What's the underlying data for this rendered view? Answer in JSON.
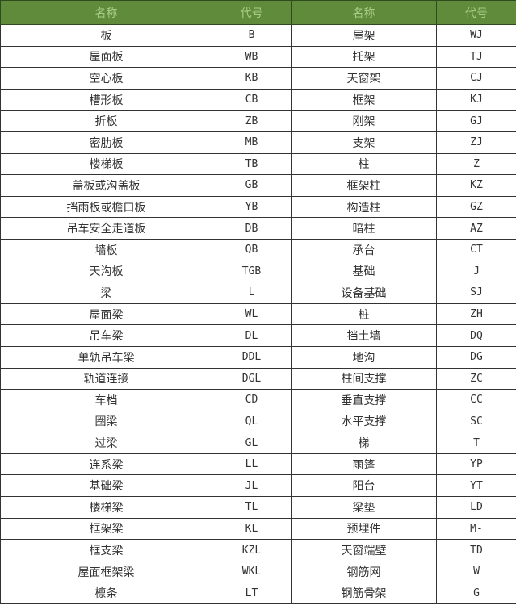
{
  "header": {
    "name1": "名称",
    "code1": "代号",
    "name2": "名称",
    "code2": "代号",
    "header_bg": "#5f8b3a"
  },
  "rows": [
    [
      "板",
      "B",
      "屋架",
      "WJ"
    ],
    [
      "屋面板",
      "WB",
      "托架",
      "TJ"
    ],
    [
      "空心板",
      "KB",
      "天窗架",
      "CJ"
    ],
    [
      "槽形板",
      "CB",
      "框架",
      "KJ"
    ],
    [
      "折板",
      "ZB",
      "刚架",
      "GJ"
    ],
    [
      "密肋板",
      "MB",
      "支架",
      "ZJ"
    ],
    [
      "楼梯板",
      "TB",
      "柱",
      "Z"
    ],
    [
      "盖板或沟盖板",
      "GB",
      "框架柱",
      "KZ"
    ],
    [
      "挡雨板或檐口板",
      "YB",
      "构造柱",
      "GZ"
    ],
    [
      "吊车安全走道板",
      "DB",
      "暗柱",
      "AZ"
    ],
    [
      "墙板",
      "QB",
      "承台",
      "CT"
    ],
    [
      "天沟板",
      "TGB",
      "基础",
      "J"
    ],
    [
      "梁",
      "L",
      "设备基础",
      "SJ"
    ],
    [
      "屋面梁",
      "WL",
      "桩",
      "ZH"
    ],
    [
      "吊车梁",
      "DL",
      "挡土墙",
      "DQ"
    ],
    [
      "单轨吊车梁",
      "DDL",
      "地沟",
      "DG"
    ],
    [
      "轨道连接",
      "DGL",
      "柱间支撑",
      "ZC"
    ],
    [
      "车档",
      "CD",
      "垂直支撑",
      "CC"
    ],
    [
      "圈梁",
      "QL",
      "水平支撑",
      "SC"
    ],
    [
      "过梁",
      "GL",
      "梯",
      "T"
    ],
    [
      "连系梁",
      "LL",
      "雨篷",
      "YP"
    ],
    [
      "基础梁",
      "JL",
      "阳台",
      "YT"
    ],
    [
      "楼梯梁",
      "TL",
      "梁垫",
      "LD"
    ],
    [
      "框架梁",
      "KL",
      "预埋件",
      "M-"
    ],
    [
      "框支梁",
      "KZL",
      "天窗端壁",
      "TD"
    ],
    [
      "屋面框架梁",
      "WKL",
      "钢筋网",
      "W"
    ],
    [
      "檩条",
      "LT",
      "钢筋骨架",
      "G"
    ]
  ]
}
